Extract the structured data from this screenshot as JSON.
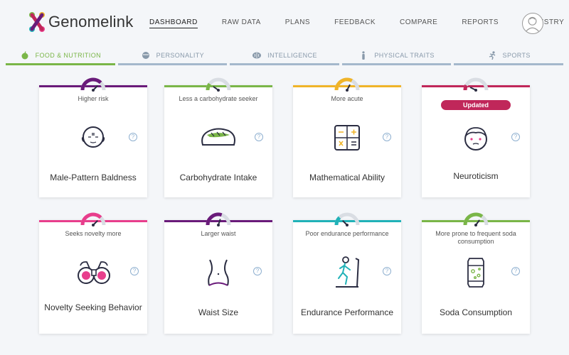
{
  "brand": {
    "name": "Genomelink"
  },
  "nav": [
    {
      "label": "DASHBOARD",
      "active": true
    },
    {
      "label": "RAW DATA"
    },
    {
      "label": "PLANS"
    },
    {
      "label": "FEEDBACK"
    },
    {
      "label": "COMPARE"
    },
    {
      "label": "REPORTS"
    },
    {
      "label": "ANCESTRY"
    }
  ],
  "tabs": [
    {
      "label": "FOOD & NUTRITION",
      "icon": "apple-icon",
      "active": true
    },
    {
      "label": "PERSONALITY",
      "icon": "face-icon"
    },
    {
      "label": "INTELLIGENCE",
      "icon": "brain-icon"
    },
    {
      "label": "PHYSICAL TRAITS",
      "icon": "person-icon"
    },
    {
      "label": "SPORTS",
      "icon": "runner-icon"
    }
  ],
  "cards": [
    {
      "title": "Male-Pattern Baldness",
      "subtitle": "Higher risk",
      "color": "#6a1b7a",
      "level": 0.75,
      "help": "?"
    },
    {
      "title": "Carbohydrate Intake",
      "subtitle": "Less a carbohydrate seeker",
      "color": "#7ab648",
      "level": 0.2,
      "help": "?"
    },
    {
      "title": "Mathematical Ability",
      "subtitle": "More acute",
      "color": "#f0b429",
      "level": 0.65,
      "help": "?"
    },
    {
      "title": "Neuroticism",
      "subtitle": "",
      "badge": "Updated",
      "color": "#c0275a",
      "level": 0.15,
      "help": "?"
    },
    {
      "title": "Novelty Seeking Behavior",
      "subtitle": "Seeks novelty more",
      "color": "#e83e8c",
      "level": 0.75,
      "help": "?"
    },
    {
      "title": "Waist Size",
      "subtitle": "Larger waist",
      "color": "#6a1b7a",
      "level": 0.6,
      "help": "?"
    },
    {
      "title": "Endurance Performance",
      "subtitle": "Poor endurance performance",
      "color": "#21b2b8",
      "level": 0.25,
      "help": "?"
    },
    {
      "title": "Soda Consumption",
      "subtitle": "More prone to frequent soda consumption",
      "color": "#7ab648",
      "level": 0.7,
      "help": "?"
    }
  ]
}
